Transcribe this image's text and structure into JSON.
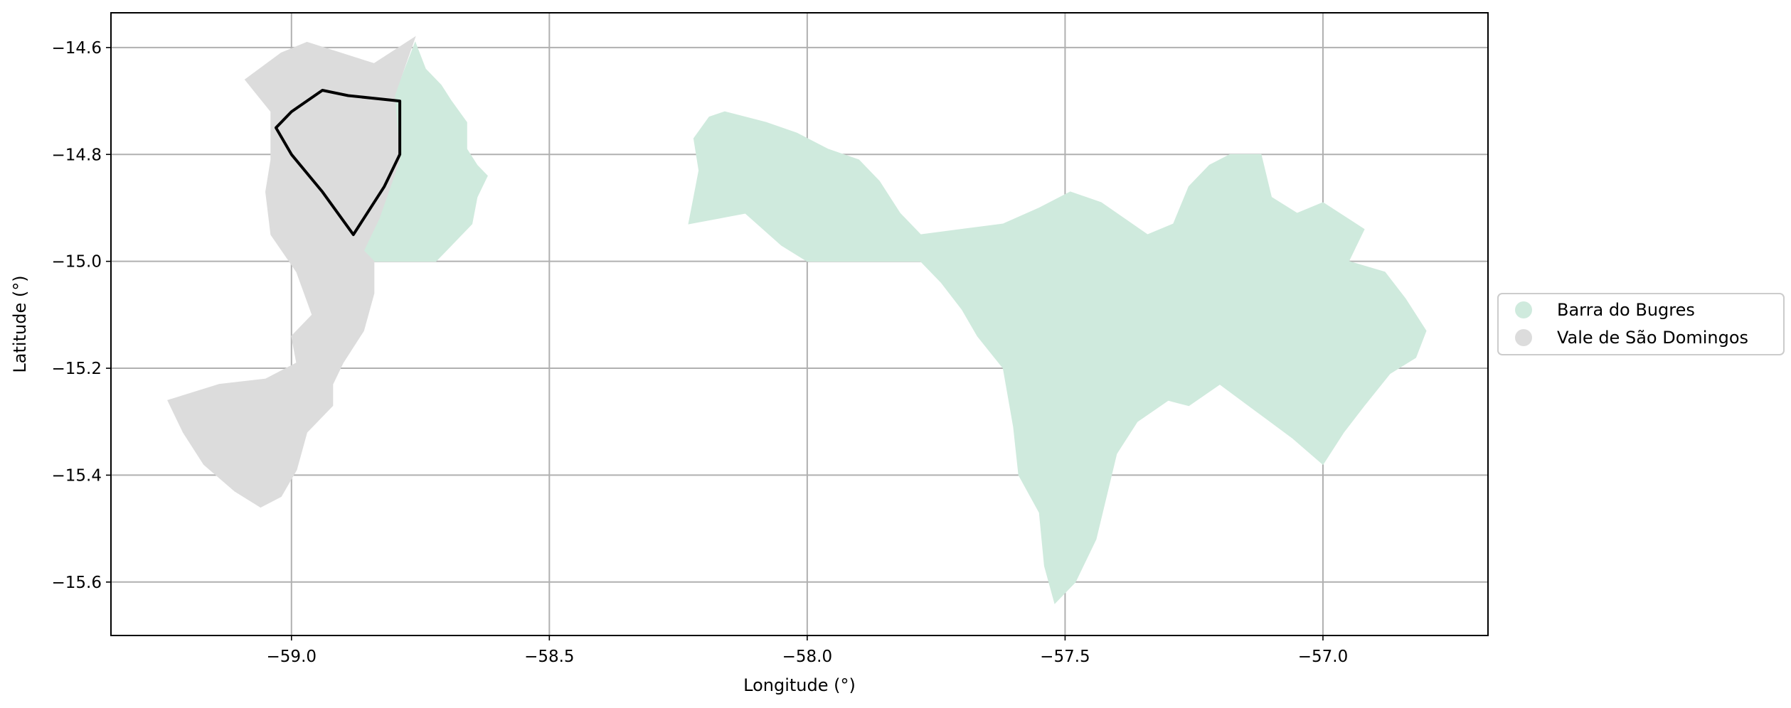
{
  "chart_data": {
    "type": "map",
    "xlabel": "Longitude (°)",
    "ylabel": "Latitude (°)",
    "xlim": [
      -59.35,
      -56.68
    ],
    "ylim": [
      -15.7,
      -14.535
    ],
    "xticks": [
      -59.0,
      -58.5,
      -58.0,
      -57.5,
      -57.0
    ],
    "xtick_labels": [
      "−59.0",
      "−58.5",
      "−58.0",
      "−57.5",
      "−57.0"
    ],
    "yticks": [
      -14.6,
      -14.8,
      -15.0,
      -15.2,
      -15.4,
      -15.6
    ],
    "ytick_labels": [
      "−14.6",
      "−14.8",
      "−15.0",
      "−15.2",
      "−15.4",
      "−15.6"
    ],
    "grid": true,
    "legend_position": "right-center outside",
    "regions": [
      {
        "name": "Barra do Bugres",
        "color": "#cfeadd",
        "polygons": [
          [
            [
              -58.76,
              -14.59
            ],
            [
              -58.74,
              -14.64
            ],
            [
              -58.71,
              -14.67
            ],
            [
              -58.69,
              -14.7
            ],
            [
              -58.66,
              -14.74
            ],
            [
              -58.66,
              -14.79
            ],
            [
              -58.64,
              -14.82
            ],
            [
              -58.62,
              -14.84
            ],
            [
              -58.64,
              -14.88
            ],
            [
              -58.65,
              -14.93
            ],
            [
              -58.69,
              -14.97
            ],
            [
              -58.72,
              -15.0
            ],
            [
              -58.84,
              -15.0
            ],
            [
              -58.86,
              -14.98
            ],
            [
              -58.83,
              -14.92
            ],
            [
              -58.79,
              -14.81
            ],
            [
              -58.8,
              -14.69
            ]
          ],
          [
            [
              -58.23,
              -14.93
            ],
            [
              -58.22,
              -14.88
            ],
            [
              -58.21,
              -14.83
            ],
            [
              -58.22,
              -14.77
            ],
            [
              -58.19,
              -14.73
            ],
            [
              -58.16,
              -14.72
            ],
            [
              -58.12,
              -14.73
            ],
            [
              -58.08,
              -14.74
            ],
            [
              -58.02,
              -14.76
            ],
            [
              -57.96,
              -14.79
            ],
            [
              -57.9,
              -14.81
            ],
            [
              -57.86,
              -14.85
            ],
            [
              -57.82,
              -14.91
            ],
            [
              -57.78,
              -14.95
            ],
            [
              -57.7,
              -14.94
            ],
            [
              -57.62,
              -14.93
            ],
            [
              -57.55,
              -14.9
            ],
            [
              -57.49,
              -14.87
            ],
            [
              -57.43,
              -14.89
            ],
            [
              -57.34,
              -14.95
            ],
            [
              -57.29,
              -14.93
            ],
            [
              -57.26,
              -14.86
            ],
            [
              -57.22,
              -14.82
            ],
            [
              -57.18,
              -14.8
            ],
            [
              -57.12,
              -14.8
            ],
            [
              -57.1,
              -14.88
            ],
            [
              -57.05,
              -14.91
            ],
            [
              -57.0,
              -14.89
            ],
            [
              -56.92,
              -14.94
            ],
            [
              -56.95,
              -15.0
            ],
            [
              -56.88,
              -15.02
            ],
            [
              -56.84,
              -15.07
            ],
            [
              -56.8,
              -15.13
            ],
            [
              -56.82,
              -15.18
            ],
            [
              -56.87,
              -15.21
            ],
            [
              -56.92,
              -15.27
            ],
            [
              -56.96,
              -15.32
            ],
            [
              -57.0,
              -15.38
            ],
            [
              -57.06,
              -15.33
            ],
            [
              -57.13,
              -15.28
            ],
            [
              -57.2,
              -15.23
            ],
            [
              -57.26,
              -15.27
            ],
            [
              -57.3,
              -15.26
            ],
            [
              -57.36,
              -15.3
            ],
            [
              -57.4,
              -15.36
            ],
            [
              -57.42,
              -15.44
            ],
            [
              -57.44,
              -15.52
            ],
            [
              -57.48,
              -15.6
            ],
            [
              -57.52,
              -15.64
            ],
            [
              -57.54,
              -15.57
            ],
            [
              -57.55,
              -15.47
            ],
            [
              -57.59,
              -15.4
            ],
            [
              -57.6,
              -15.31
            ],
            [
              -57.62,
              -15.2
            ],
            [
              -57.67,
              -15.14
            ],
            [
              -57.7,
              -15.09
            ],
            [
              -57.74,
              -15.04
            ],
            [
              -57.78,
              -15.0
            ],
            [
              -58.0,
              -15.0
            ],
            [
              -58.05,
              -14.97
            ],
            [
              -58.12,
              -14.91
            ]
          ]
        ]
      },
      {
        "name": "Vale de São Domingos",
        "color": "#dcdcdc",
        "polygons": [
          [
            [
              -58.97,
              -14.59
            ],
            [
              -58.84,
              -14.63
            ],
            [
              -58.76,
              -14.58
            ],
            [
              -58.8,
              -14.69
            ],
            [
              -58.79,
              -14.81
            ],
            [
              -58.83,
              -14.92
            ],
            [
              -58.86,
              -14.98
            ],
            [
              -58.84,
              -15.0
            ],
            [
              -58.84,
              -15.06
            ],
            [
              -58.86,
              -15.13
            ],
            [
              -58.9,
              -15.19
            ],
            [
              -58.92,
              -15.23
            ],
            [
              -58.92,
              -15.27
            ],
            [
              -58.97,
              -15.32
            ],
            [
              -58.99,
              -15.39
            ],
            [
              -59.02,
              -15.44
            ],
            [
              -59.06,
              -15.46
            ],
            [
              -59.11,
              -15.43
            ],
            [
              -59.17,
              -15.38
            ],
            [
              -59.21,
              -15.32
            ],
            [
              -59.24,
              -15.26
            ],
            [
              -59.14,
              -15.23
            ],
            [
              -59.05,
              -15.22
            ],
            [
              -58.99,
              -15.19
            ],
            [
              -59.0,
              -15.14
            ],
            [
              -58.96,
              -15.1
            ],
            [
              -58.99,
              -15.02
            ],
            [
              -59.04,
              -14.95
            ],
            [
              -59.05,
              -14.87
            ],
            [
              -59.04,
              -14.81
            ],
            [
              -59.04,
              -14.72
            ],
            [
              -59.09,
              -14.66
            ],
            [
              -59.02,
              -14.61
            ]
          ]
        ]
      }
    ],
    "outline": {
      "color": "#000000",
      "points": [
        [
          -58.94,
          -14.68
        ],
        [
          -58.89,
          -14.69
        ],
        [
          -58.79,
          -14.7
        ],
        [
          -58.79,
          -14.8
        ],
        [
          -58.82,
          -14.86
        ],
        [
          -58.88,
          -14.95
        ],
        [
          -58.94,
          -14.87
        ],
        [
          -59.0,
          -14.8
        ],
        [
          -59.03,
          -14.75
        ],
        [
          -59.0,
          -14.72
        ]
      ]
    },
    "legend": [
      {
        "label": "Barra do Bugres",
        "color": "#cfeadd"
      },
      {
        "label": "Vale de São Domingos",
        "color": "#dcdcdc"
      }
    ]
  }
}
